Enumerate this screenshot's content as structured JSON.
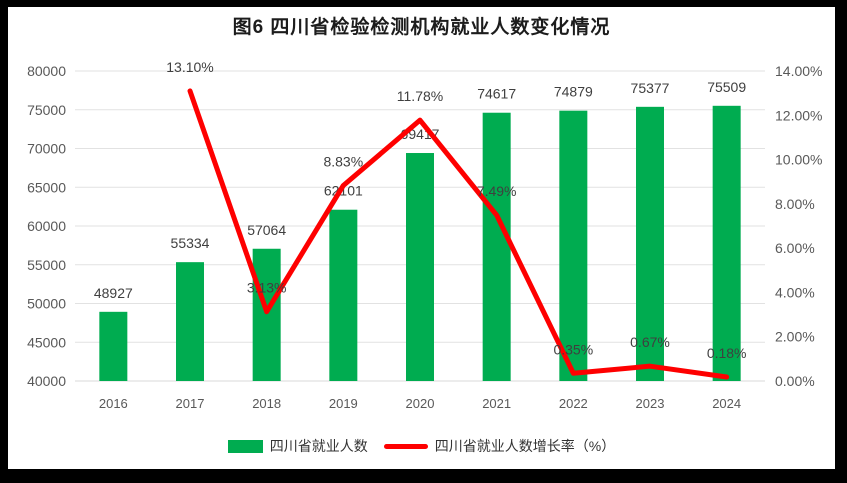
{
  "frame": {
    "border_color": "#000000",
    "background": "#ffffff"
  },
  "title": "图6  四川省检验检测机构就业人数变化情况",
  "chart_data": {
    "type": "bar+line combo",
    "title": "图6  四川省检验检测机构就业人数变化情况",
    "categories": [
      "2016",
      "2017",
      "2018",
      "2019",
      "2020",
      "2021",
      "2022",
      "2023",
      "2024"
    ],
    "series": [
      {
        "name": "四川省就业人数",
        "type": "bar",
        "axis": "left",
        "color": "#00AC50",
        "values": [
          48927,
          55334,
          57064,
          62101,
          69417,
          74617,
          74879,
          75377,
          75509
        ],
        "labels": [
          "48927",
          "55334",
          "57064",
          "62101",
          "69417",
          "74617",
          "74879",
          "75377",
          "75509"
        ]
      },
      {
        "name": "四川省就业人数增长率（%）",
        "type": "line",
        "axis": "right",
        "color": "#FE0000",
        "values": [
          null,
          13.1,
          3.13,
          8.83,
          11.78,
          7.49,
          0.35,
          0.67,
          0.18
        ],
        "labels": [
          null,
          "13.10%",
          "3.13%",
          "8.83%",
          "11.78%",
          "7.49%",
          "0.35%",
          "0.67%",
          "0.18%"
        ]
      }
    ],
    "left_axis": {
      "min": 40000,
      "max": 80000,
      "step": 5000,
      "tick_labels": [
        "40000",
        "45000",
        "50000",
        "55000",
        "60000",
        "65000",
        "70000",
        "75000",
        "80000"
      ]
    },
    "right_axis": {
      "min": 0,
      "max": 14,
      "step": 2,
      "tick_labels": [
        "0.00%",
        "2.00%",
        "4.00%",
        "6.00%",
        "8.00%",
        "10.00%",
        "12.00%",
        "14.00%"
      ]
    },
    "grid": true,
    "grid_color": "#E2E2E2",
    "axis_line_color": "#D9D9D9",
    "legend_position": "bottom"
  }
}
